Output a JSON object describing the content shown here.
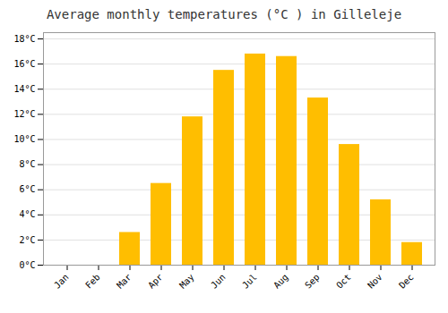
{
  "chart_data": {
    "type": "bar",
    "title": "Average monthly temperatures (°C ) in Gilleleje",
    "categories": [
      "Jan",
      "Feb",
      "Mar",
      "Apr",
      "May",
      "Jun",
      "Jul",
      "Aug",
      "Sep",
      "Oct",
      "Nov",
      "Dec"
    ],
    "values": [
      0,
      0,
      2.6,
      6.5,
      11.8,
      15.5,
      16.8,
      16.6,
      13.3,
      9.6,
      5.2,
      1.8
    ],
    "color": "#FFBE00",
    "ylim": [
      0,
      18.5
    ],
    "yticks": [
      {
        "value": 0,
        "label": "0°C"
      },
      {
        "value": 2,
        "label": "2°C"
      },
      {
        "value": 4,
        "label": "4°C"
      },
      {
        "value": 6,
        "label": "6°C"
      },
      {
        "value": 8,
        "label": "8°C"
      },
      {
        "value": 10,
        "label": "10°C"
      },
      {
        "value": 12,
        "label": "12°C"
      },
      {
        "value": 14,
        "label": "14°C"
      },
      {
        "value": 16,
        "label": "16°C"
      },
      {
        "value": 18,
        "label": "18°C"
      }
    ],
    "grid": true
  }
}
